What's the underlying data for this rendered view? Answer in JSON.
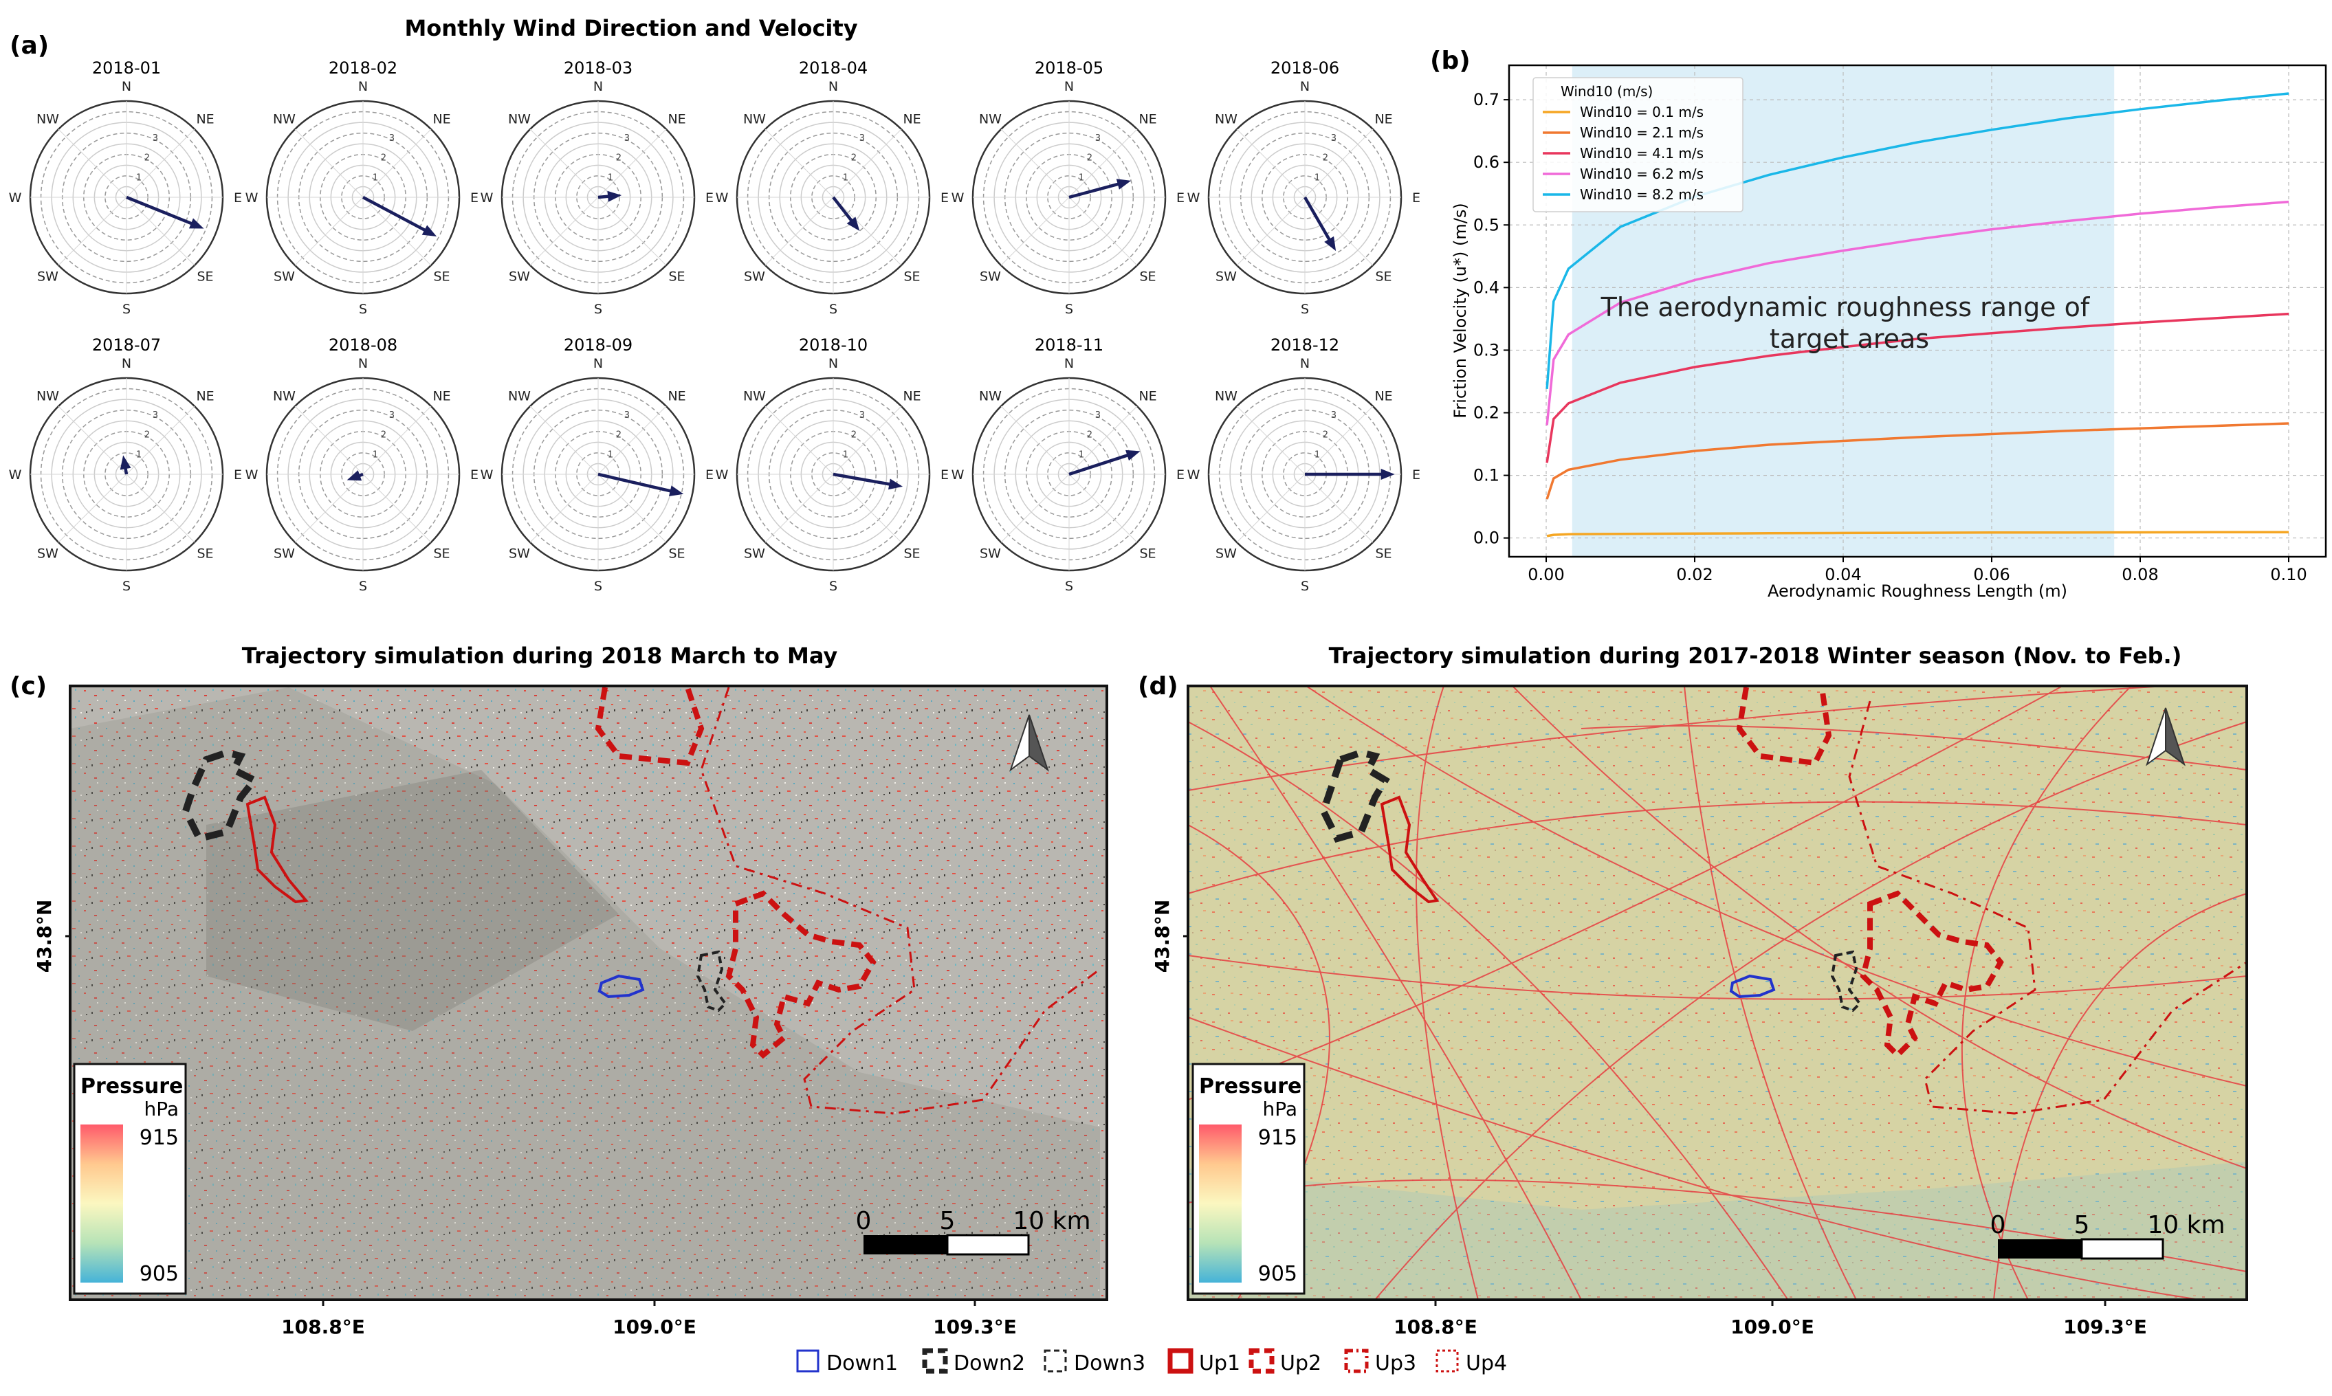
{
  "panel_a": {
    "letter": "(a)",
    "title": "Monthly Wind Direction and Velocity",
    "compass": [
      "N",
      "NE",
      "E",
      "SE",
      "S",
      "SW",
      "W",
      "NW"
    ],
    "ring_labels": [
      "1",
      "2",
      "3"
    ],
    "arrow_color": "#1a1f5e"
  },
  "panel_b": {
    "letter": "(b)",
    "annotation": "The aerodynamic roughness range of target areas"
  },
  "panel_c": {
    "letter": "(c)",
    "title": "Trajectory simulation during 2018 March to May",
    "lat_label": "43.8°N",
    "lon_labels": [
      "108.8°E",
      "109.0°E",
      "109.3°E"
    ],
    "pressure": {
      "title": "Pressure",
      "unit": "hPa",
      "max": "915",
      "min": "905"
    },
    "scale": {
      "labels": [
        "0",
        "5",
        "10 km"
      ]
    }
  },
  "panel_d": {
    "letter": "(d)",
    "title": "Trajectory simulation during 2017-2018 Winter season (Nov. to Feb.)",
    "lat_label": "43.8°N",
    "lon_labels": [
      "108.8°E",
      "109.0°E",
      "109.3°E"
    ],
    "pressure": {
      "title": "Pressure",
      "unit": "hPa",
      "max": "915",
      "min": "905"
    },
    "scale": {
      "labels": [
        "0",
        "5",
        "10 km"
      ]
    }
  },
  "area_legend": [
    {
      "label": "Down1",
      "color": "#2233cc",
      "style": "solid"
    },
    {
      "label": "Down2",
      "color": "#222222",
      "style": "dashed-thick"
    },
    {
      "label": "Down3",
      "color": "#222222",
      "style": "dashed"
    },
    {
      "label": "Up1",
      "color": "#cc1111",
      "style": "solid-thick"
    },
    {
      "label": "Up2",
      "color": "#cc1111",
      "style": "dashed-thick"
    },
    {
      "label": "Up3",
      "color": "#cc1111",
      "style": "dashdot"
    },
    {
      "label": "Up4",
      "color": "#cc1111",
      "style": "dotted"
    }
  ],
  "chart_data": [
    {
      "type": "polar-arrow",
      "title": "Monthly Wind Direction and Velocity",
      "radial_ticks": [
        1,
        2,
        3
      ],
      "series": [
        {
          "name": "2018-01",
          "direction_deg": 112,
          "speed": 3.9
        },
        {
          "name": "2018-02",
          "direction_deg": 118,
          "speed": 3.9
        },
        {
          "name": "2018-03",
          "direction_deg": 85,
          "speed": 1.1
        },
        {
          "name": "2018-04",
          "direction_deg": 142,
          "speed": 2.0
        },
        {
          "name": "2018-05",
          "direction_deg": 75,
          "speed": 3.0
        },
        {
          "name": "2018-06",
          "direction_deg": 150,
          "speed": 2.9
        },
        {
          "name": "2018-07",
          "direction_deg": 350,
          "speed": 0.9
        },
        {
          "name": "2018-08",
          "direction_deg": 250,
          "speed": 0.8
        },
        {
          "name": "2018-09",
          "direction_deg": 103,
          "speed": 4.1
        },
        {
          "name": "2018-10",
          "direction_deg": 100,
          "speed": 3.3
        },
        {
          "name": "2018-11",
          "direction_deg": 72,
          "speed": 3.5
        },
        {
          "name": "2018-12",
          "direction_deg": 90,
          "speed": 4.2
        }
      ]
    },
    {
      "type": "line",
      "title": "",
      "xlabel": "Aerodynamic Roughness Length (m)",
      "ylabel": "Friction Velocity (u*) (m/s)",
      "xlim": [
        -0.005,
        0.105
      ],
      "ylim": [
        -0.03,
        0.755
      ],
      "xticks": [
        0.0,
        0.02,
        0.04,
        0.06,
        0.08,
        0.1
      ],
      "xtick_labels": [
        "0.00",
        "0.02",
        "0.04",
        "0.06",
        "0.08",
        "0.10"
      ],
      "yticks": [
        0.0,
        0.1,
        0.2,
        0.3,
        0.4,
        0.5,
        0.6,
        0.7
      ],
      "ytick_labels": [
        "0.0",
        "0.1",
        "0.2",
        "0.3",
        "0.4",
        "0.5",
        "0.6",
        "0.7"
      ],
      "grid": true,
      "legend_title": "Wind10 (m/s)",
      "legend_position": "top-left",
      "shaded_x_range": [
        0.0035,
        0.0765
      ],
      "x": [
        0.0001,
        0.001,
        0.003,
        0.01,
        0.02,
        0.03,
        0.04,
        0.05,
        0.06,
        0.07,
        0.08,
        0.09,
        0.1
      ],
      "series": [
        {
          "name": "Wind10 = 0.1 m/s",
          "color": "#f5a623",
          "values": [
            0.003,
            0.005,
            0.006,
            0.0065,
            0.007,
            0.0075,
            0.008,
            0.0083,
            0.0086,
            0.0088,
            0.009,
            0.0092,
            0.0093
          ]
        },
        {
          "name": "Wind10 = 2.1 m/s",
          "color": "#f07830",
          "values": [
            0.062,
            0.095,
            0.109,
            0.125,
            0.139,
            0.149,
            0.155,
            0.161,
            0.166,
            0.171,
            0.175,
            0.179,
            0.183
          ]
        },
        {
          "name": "Wind10 = 4.1 m/s",
          "color": "#e8365d",
          "values": [
            0.12,
            0.19,
            0.215,
            0.248,
            0.273,
            0.291,
            0.305,
            0.318,
            0.327,
            0.336,
            0.344,
            0.351,
            0.358
          ]
        },
        {
          "name": "Wind10 = 6.2 m/s",
          "color": "#f06ad8",
          "values": [
            0.18,
            0.285,
            0.325,
            0.376,
            0.412,
            0.439,
            0.459,
            0.477,
            0.493,
            0.506,
            0.518,
            0.528,
            0.537
          ]
        },
        {
          "name": "Wind10 = 8.2 m/s",
          "color": "#1ab7e8",
          "values": [
            0.238,
            0.378,
            0.43,
            0.497,
            0.545,
            0.58,
            0.608,
            0.632,
            0.652,
            0.67,
            0.685,
            0.698,
            0.71
          ]
        }
      ]
    }
  ]
}
